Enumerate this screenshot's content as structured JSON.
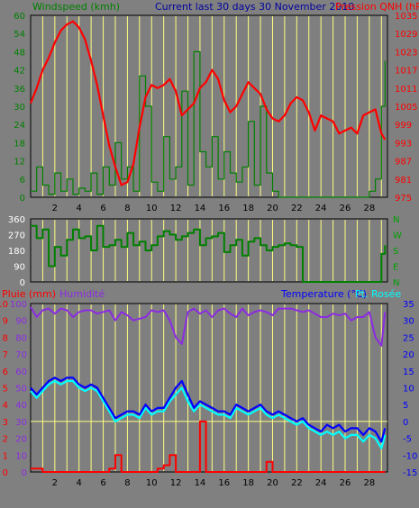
{
  "colors": {
    "background": "#808080",
    "plot_bg": "#7f7f7f",
    "daylines": "#ffff80",
    "wind": "#008000",
    "winddir": "#008000",
    "pressure": "#ff0000",
    "rain": "#ff0000",
    "humidity": "#8b2be2",
    "temperature": "#0000ff",
    "dewpoint": "#00ffff",
    "axis_left_top": "#008000",
    "axis_right_top": "#ff0000",
    "axis_rain": "#ff0000",
    "axis_hum": "#8b2be2",
    "axis_temp": "#0000ff",
    "zero_line": "#ffff80"
  },
  "header": {
    "wind_label": "Windspeed (kmh)",
    "title": "Current last 30 days 30 November 2010",
    "pressure_label": "Pression QNH (hPa"
  },
  "bottom_header": {
    "rain_label": "Pluie (mm)",
    "hum_label": "Humidité",
    "temp_label": "Temperature (°C)",
    "dew_label": "Pt. Rosée"
  },
  "chart_data": [
    {
      "type": "line",
      "name": "wind-pressure",
      "x_ticks": [
        "2",
        "4",
        "6",
        "8",
        "10",
        "12",
        "14",
        "16",
        "18",
        "20",
        "22",
        "24",
        "26",
        "28"
      ],
      "y_left": {
        "label": "Windspeed (kmh)",
        "ticks": [
          "60",
          "54",
          "48",
          "42",
          "36",
          "30",
          "24",
          "18",
          "12",
          "6",
          "0"
        ],
        "range": [
          0,
          60
        ]
      },
      "y_right": {
        "label": "Pression QNH (hPa",
        "ticks": [
          "1035",
          "1029",
          "1023",
          "1017",
          "1011",
          "1005",
          "999",
          "993",
          "987",
          "981",
          "975"
        ],
        "range": [
          975,
          1035
        ]
      },
      "series": [
        {
          "name": "Windspeed (kmh)",
          "axis": "left",
          "x": [
            0,
            0.5,
            1,
            1.5,
            2,
            2.5,
            3,
            3.5,
            4,
            4.5,
            5,
            5.5,
            6,
            6.5,
            7,
            7.5,
            8,
            8.5,
            9,
            9.5,
            10,
            10.5,
            11,
            11.5,
            12,
            12.5,
            13,
            13.5,
            14,
            14.5,
            15,
            15.5,
            16,
            16.5,
            17,
            17.5,
            18,
            18.5,
            19,
            19.5,
            20,
            20.5,
            21,
            21.5,
            22,
            22.5,
            23,
            23.5,
            24,
            24.5,
            25,
            25.5,
            26,
            26.5,
            27,
            27.5,
            28,
            28.5,
            29,
            29.3
          ],
          "y": [
            2,
            10,
            4,
            1,
            8,
            2,
            6,
            1,
            3,
            2,
            8,
            1,
            10,
            4,
            18,
            6,
            10,
            2,
            40,
            30,
            5,
            2,
            20,
            6,
            10,
            35,
            4,
            48,
            15,
            10,
            20,
            6,
            15,
            8,
            5,
            10,
            25,
            4,
            30,
            8,
            2,
            0,
            0,
            0,
            0,
            0,
            0,
            0,
            0,
            0,
            0,
            0,
            0,
            0,
            0,
            0,
            2,
            6,
            30,
            45
          ]
        },
        {
          "name": "Pression QNH (hPa",
          "axis": "right",
          "x": [
            0,
            0.5,
            1,
            1.5,
            2,
            2.5,
            3,
            3.5,
            4,
            4.5,
            5,
            5.5,
            6,
            6.5,
            7,
            7.5,
            8,
            8.5,
            9,
            9.5,
            10,
            10.5,
            11,
            11.5,
            12,
            12.5,
            13,
            13.5,
            14,
            14.5,
            15,
            15.5,
            16,
            16.5,
            17,
            17.5,
            18,
            18.5,
            19,
            19.5,
            20,
            20.5,
            21,
            21.5,
            22,
            22.5,
            23,
            23.5,
            24,
            24.5,
            25,
            25.5,
            26,
            26.5,
            27,
            27.5,
            28,
            28.5,
            29,
            29.3
          ],
          "y": [
            1006,
            1011,
            1017,
            1021,
            1026,
            1030,
            1032,
            1033,
            1031,
            1027,
            1020,
            1012,
            1002,
            992,
            985,
            979,
            980,
            986,
            998,
            1008,
            1012,
            1011,
            1012,
            1014,
            1010,
            1002,
            1004,
            1006,
            1011,
            1013,
            1017,
            1014,
            1007,
            1003,
            1005,
            1009,
            1013,
            1011,
            1009,
            1004,
            1001,
            1000,
            1002,
            1006,
            1008,
            1007,
            1003,
            997,
            1002,
            1001,
            1000,
            996,
            997,
            998,
            996,
            1002,
            1003,
            1004,
            996,
            994
          ]
        }
      ]
    },
    {
      "type": "line",
      "name": "wind-direction",
      "x_ticks": [],
      "y_left": {
        "ticks": [
          "360",
          "270",
          "180",
          "90",
          "0"
        ],
        "range": [
          0,
          360
        ]
      },
      "y_right": {
        "ticks": [
          "N",
          "W",
          "S",
          "E",
          "N"
        ]
      },
      "series": [
        {
          "name": "direction",
          "x": [
            0,
            0.5,
            1,
            1.5,
            2,
            2.5,
            3,
            3.5,
            4,
            4.5,
            5,
            5.5,
            6,
            6.5,
            7,
            7.5,
            8,
            8.5,
            9,
            9.5,
            10,
            10.5,
            11,
            11.5,
            12,
            12.5,
            13,
            13.5,
            14,
            14.5,
            15,
            15.5,
            16,
            16.5,
            17,
            17.5,
            18,
            18.5,
            19,
            19.5,
            20,
            20.5,
            21,
            21.5,
            22,
            22.5,
            23,
            23.5,
            24,
            24.5,
            25,
            25.5,
            26,
            26.5,
            27,
            27.5,
            28,
            28.5,
            29,
            29.3
          ],
          "y": [
            320,
            250,
            300,
            90,
            200,
            150,
            240,
            300,
            250,
            260,
            180,
            320,
            200,
            210,
            240,
            200,
            280,
            210,
            230,
            180,
            210,
            260,
            290,
            270,
            240,
            260,
            280,
            300,
            210,
            250,
            260,
            280,
            170,
            210,
            240,
            150,
            230,
            250,
            210,
            180,
            200,
            210,
            220,
            210,
            200,
            0,
            0,
            0,
            0,
            0,
            0,
            0,
            0,
            0,
            0,
            0,
            0,
            0,
            160,
            210
          ]
        }
      ]
    },
    {
      "type": "line",
      "name": "rain-humidity-temperature",
      "x_ticks": [
        "2",
        "4",
        "6",
        "8",
        "10",
        "12",
        "14",
        "16",
        "18",
        "20",
        "22",
        "24",
        "26",
        "28"
      ],
      "y_left": {
        "label": "Pluie (mm)",
        "ticks": [
          "10",
          "9",
          "8",
          "7",
          "6",
          "5",
          "4",
          "3",
          "2",
          "1",
          "0"
        ],
        "range": [
          0,
          10
        ]
      },
      "y_left2": {
        "label": "Humidité",
        "ticks": [
          "100",
          "90",
          "80",
          "70",
          "60",
          "50",
          "40",
          "30",
          "20",
          "10",
          "0"
        ],
        "range": [
          0,
          100
        ]
      },
      "y_right": {
        "label": "Temperature (°C)",
        "ticks": [
          "35",
          "30",
          "25",
          "20",
          "15",
          "10",
          "5",
          "0",
          "-5",
          "-10",
          "-15"
        ],
        "range": [
          -15,
          35
        ]
      },
      "series": [
        {
          "name": "Pluie (mm)",
          "axis": "left",
          "x": [
            0,
            0.5,
            1,
            1.5,
            2,
            2.5,
            3,
            3.5,
            4,
            4.5,
            5,
            5.5,
            6,
            6.5,
            7,
            7.5,
            8,
            8.5,
            9,
            9.5,
            10,
            10.5,
            11,
            11.5,
            12,
            12.5,
            13,
            13.5,
            14,
            14.5,
            15,
            15.5,
            16,
            16.5,
            17,
            17.5,
            18,
            18.5,
            19,
            19.5,
            20,
            20.5,
            21,
            21.5,
            22,
            22.5,
            23,
            23.5,
            24,
            24.5,
            25,
            25.5,
            26,
            26.5,
            27,
            27.5,
            28,
            28.5,
            29,
            29.3
          ],
          "y": [
            0.2,
            0.2,
            0,
            0,
            0,
            0,
            0,
            0,
            0,
            0,
            0,
            0,
            0,
            0.2,
            1,
            0,
            0,
            0,
            0,
            0,
            0,
            0.2,
            0.4,
            1,
            0,
            0,
            0,
            0,
            3,
            0,
            0,
            0,
            0,
            0,
            0,
            0,
            0,
            0,
            0,
            0.6,
            0,
            0,
            0,
            0,
            0,
            0,
            0,
            0,
            0,
            0,
            0,
            0,
            0,
            0,
            0,
            0,
            0,
            0,
            0,
            0
          ]
        },
        {
          "name": "Humidité",
          "axis": "left2",
          "x": [
            0,
            0.5,
            1,
            1.5,
            2,
            2.5,
            3,
            3.5,
            4,
            4.5,
            5,
            5.5,
            6,
            6.5,
            7,
            7.5,
            8,
            8.5,
            9,
            9.5,
            10,
            10.5,
            11,
            11.5,
            12,
            12.5,
            13,
            13.5,
            14,
            14.5,
            15,
            15.5,
            16,
            16.5,
            17,
            17.5,
            18,
            18.5,
            19,
            19.5,
            20,
            20.5,
            21,
            21.5,
            22,
            22.5,
            23,
            23.5,
            24,
            24.5,
            25,
            25.5,
            26,
            26.5,
            27,
            27.5,
            28,
            28.5,
            29,
            29.3
          ],
          "y": [
            98,
            92,
            96,
            97,
            94,
            97,
            96,
            92,
            95,
            96,
            96,
            94,
            95,
            96,
            90,
            95,
            93,
            90,
            91,
            92,
            96,
            95,
            96,
            90,
            80,
            76,
            95,
            97,
            94,
            96,
            92,
            96,
            97,
            94,
            92,
            97,
            93,
            95,
            96,
            95,
            93,
            97,
            97,
            97,
            96,
            95,
            96,
            94,
            92,
            92,
            94,
            93,
            94,
            90,
            92,
            92,
            95,
            80,
            75,
            95
          ]
        },
        {
          "name": "Temperature (°C)",
          "axis": "right",
          "x": [
            0,
            0.5,
            1,
            1.5,
            2,
            2.5,
            3,
            3.5,
            4,
            4.5,
            5,
            5.5,
            6,
            6.5,
            7,
            7.5,
            8,
            8.5,
            9,
            9.5,
            10,
            10.5,
            11,
            11.5,
            12,
            12.5,
            13,
            13.5,
            14,
            14.5,
            15,
            15.5,
            16,
            16.5,
            17,
            17.5,
            18,
            18.5,
            19,
            19.5,
            20,
            20.5,
            21,
            21.5,
            22,
            22.5,
            23,
            23.5,
            24,
            24.5,
            25,
            25.5,
            26,
            26.5,
            27,
            27.5,
            28,
            28.5,
            29,
            29.3
          ],
          "y": [
            10,
            8,
            10,
            12,
            13,
            12,
            13,
            13,
            11,
            10,
            11,
            10,
            7,
            4,
            1,
            2,
            3,
            3,
            2,
            5,
            3,
            4,
            4,
            7,
            10,
            12,
            8,
            4,
            6,
            5,
            4,
            3,
            3,
            2,
            5,
            4,
            3,
            4,
            5,
            3,
            2,
            3,
            2,
            1,
            0,
            1,
            -1,
            -2,
            -3,
            -1,
            -2,
            -1,
            -3,
            -2,
            -2,
            -4,
            -2,
            -3,
            -6,
            -2
          ]
        },
        {
          "name": "Pt. Rosée",
          "axis": "right",
          "x": [
            0,
            0.5,
            1,
            1.5,
            2,
            2.5,
            3,
            3.5,
            4,
            4.5,
            5,
            5.5,
            6,
            6.5,
            7,
            7.5,
            8,
            8.5,
            9,
            9.5,
            10,
            10.5,
            11,
            11.5,
            12,
            12.5,
            13,
            13.5,
            14,
            14.5,
            15,
            15.5,
            16,
            16.5,
            17,
            17.5,
            18,
            18.5,
            19,
            19.5,
            20,
            20.5,
            21,
            21.5,
            22,
            22.5,
            23,
            23.5,
            24,
            24.5,
            25,
            25.5,
            26,
            26.5,
            27,
            27.5,
            28,
            28.5,
            29,
            29.3
          ],
          "y": [
            9,
            7,
            9,
            11,
            12,
            11,
            12,
            12,
            10,
            9,
            10,
            9,
            6,
            3,
            0,
            1,
            2,
            2,
            1,
            4,
            2,
            3,
            3,
            6,
            8,
            10,
            6,
            3,
            5,
            4,
            3,
            2,
            2,
            1,
            4,
            3,
            2,
            3,
            4,
            2,
            1,
            2,
            1,
            0,
            -1,
            0,
            -2,
            -3,
            -4,
            -3,
            -4,
            -3,
            -5,
            -4,
            -4,
            -6,
            -4,
            -5,
            -8,
            -4
          ]
        }
      ]
    }
  ]
}
